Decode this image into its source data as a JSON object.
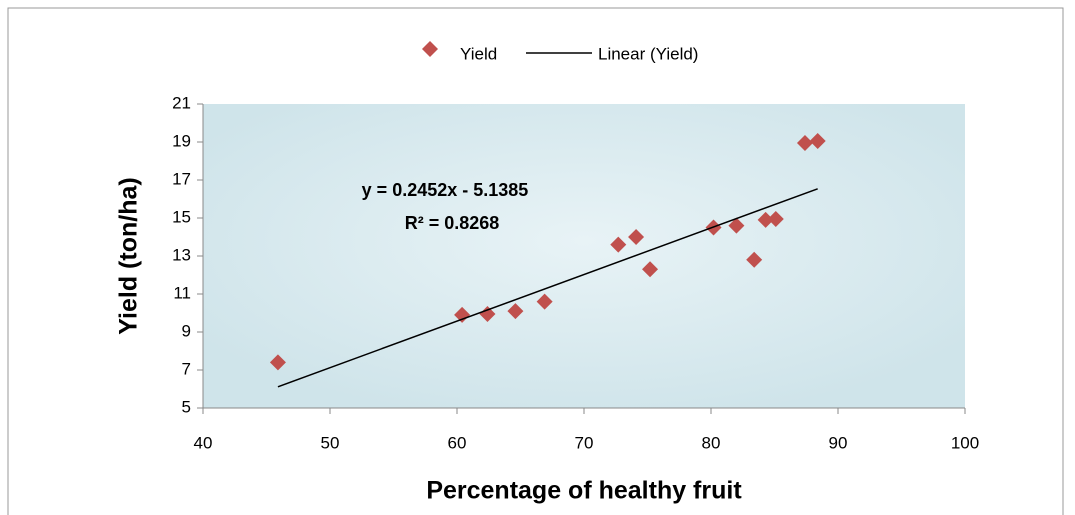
{
  "chart_data": {
    "type": "scatter",
    "x_label": "Percentage of healthy fruit",
    "y_label": "Yield (ton/ha)",
    "series": [
      {
        "name": "Yield",
        "color": "#c0504d",
        "x": [
          45.9,
          60.4,
          62.4,
          64.6,
          66.9,
          72.7,
          74.1,
          75.2,
          80.2,
          82.0,
          83.4,
          84.3,
          85.1,
          87.4,
          88.4
        ],
        "values": [
          7.4,
          9.9,
          9.95,
          10.1,
          10.6,
          13.6,
          14.0,
          12.3,
          14.5,
          14.6,
          12.8,
          14.9,
          14.95,
          18.95,
          19.05
        ]
      },
      {
        "name": "Linear (Yield)",
        "color": "#000000",
        "line": true,
        "x": [
          45.9,
          88.4
        ],
        "values": [
          6.116,
          16.537
        ]
      }
    ],
    "annotations": [
      "y = 0.2452x - 5.1385",
      "R² = 0.8268"
    ],
    "xlim": [
      40,
      100
    ],
    "xticks": [
      40,
      50,
      60,
      70,
      80,
      90,
      100
    ],
    "ylim": [
      5,
      21
    ],
    "yticks": [
      5,
      7,
      9,
      11,
      13,
      15,
      17,
      19,
      21
    ],
    "legend": "top",
    "grid": false
  }
}
